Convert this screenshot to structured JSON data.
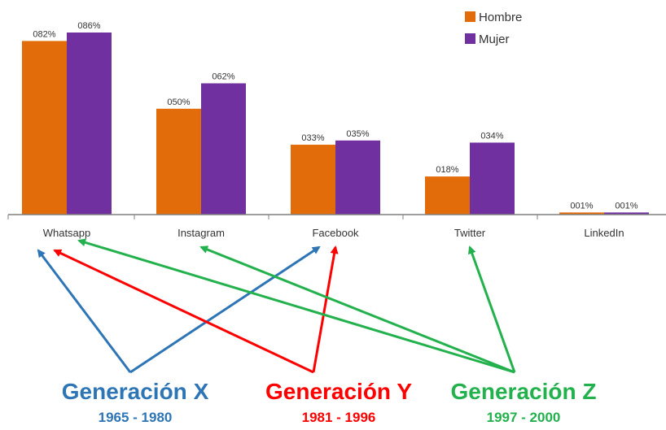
{
  "chart_data": {
    "type": "bar",
    "categories": [
      "Whatsapp",
      "Instagram",
      "Facebook",
      "Twitter",
      "LinkedIn"
    ],
    "series": [
      {
        "name": "Hombre",
        "values": [
          82,
          50,
          33,
          18,
          1
        ],
        "labels": [
          "082%",
          "050%",
          "033%",
          "018%",
          "001%"
        ],
        "color": "#e36c0a"
      },
      {
        "name": "Mujer",
        "values": [
          86,
          62,
          35,
          34,
          1
        ],
        "labels": [
          "086%",
          "062%",
          "035%",
          "034%",
          "001%"
        ],
        "color": "#7030a0"
      }
    ],
    "ylim": [
      0,
      86
    ],
    "grid": false,
    "legend": "top-right"
  },
  "generations": [
    {
      "name": "Generación X",
      "years": "1965 - 1980",
      "color": "#2e75b6",
      "targets": [
        "Whatsapp",
        "Facebook"
      ]
    },
    {
      "name": "Generación Y",
      "years": "1981 - 1996",
      "color": "#ff0000",
      "targets": [
        "Whatsapp",
        "Facebook"
      ]
    },
    {
      "name": "Generación Z",
      "years": "1997 - 2000",
      "color": "#22b14c",
      "targets": [
        "Whatsapp",
        "Instagram",
        "Twitter"
      ]
    }
  ]
}
